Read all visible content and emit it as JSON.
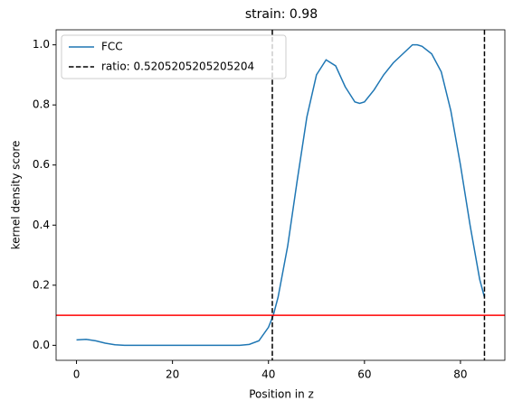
{
  "chart_data": {
    "type": "line",
    "title": "strain: 0.98",
    "xlabel": "Position in z",
    "ylabel": "kernel density score",
    "series": [
      {
        "name": "FCC",
        "color": "#1f77b4",
        "x": [
          0,
          2,
          4,
          6,
          8,
          10,
          15,
          20,
          25,
          30,
          34,
          36,
          38,
          40,
          41,
          42,
          44,
          46,
          48,
          50,
          52,
          54,
          56,
          58,
          59,
          60,
          62,
          64,
          66,
          68,
          70,
          71,
          72,
          74,
          76,
          78,
          80,
          82,
          84,
          85
        ],
        "values": [
          0.018,
          0.02,
          0.015,
          0.007,
          0.002,
          0,
          0,
          0,
          0,
          0,
          0,
          0.003,
          0.015,
          0.06,
          0.1,
          0.16,
          0.33,
          0.55,
          0.76,
          0.9,
          0.95,
          0.93,
          0.86,
          0.81,
          0.805,
          0.81,
          0.85,
          0.9,
          0.94,
          0.97,
          1.0,
          1.0,
          0.995,
          0.97,
          0.91,
          0.78,
          0.6,
          0.4,
          0.22,
          0.16
        ]
      }
    ],
    "vlines": {
      "name": "ratio: 0.5205205205205204",
      "color": "#000000",
      "x": [
        40.8,
        85
      ]
    },
    "hline": {
      "value": 0.1,
      "color": "#ff0000"
    },
    "xlim": [
      -4.25,
      89.25
    ],
    "ylim": [
      -0.05,
      1.05
    ],
    "xticks": [
      0,
      20,
      40,
      60,
      80
    ],
    "yticks": [
      {
        "value": 0,
        "label": "0.0"
      },
      {
        "value": 0.2,
        "label": "0.2"
      },
      {
        "value": 0.4,
        "label": "0.4"
      },
      {
        "value": 0.6,
        "label": "0.6"
      },
      {
        "value": 0.8,
        "label": "0.8"
      },
      {
        "value": 1,
        "label": "1.0"
      }
    ],
    "legend": "upper left"
  }
}
